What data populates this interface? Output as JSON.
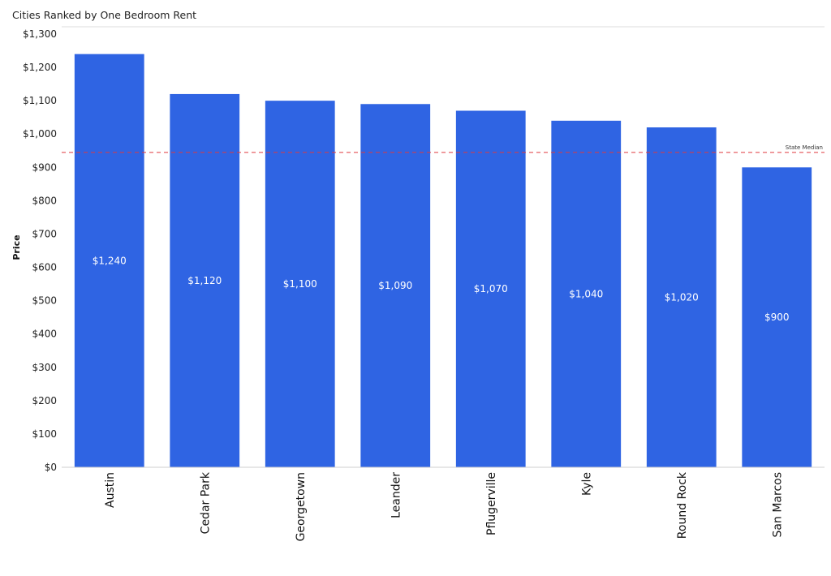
{
  "chart_data": {
    "type": "bar",
    "title": "Cities Ranked by One Bedroom Rent",
    "ylabel": "Price",
    "xlabel": "",
    "ylim": [
      0,
      1300
    ],
    "yticks": [
      0,
      100,
      200,
      300,
      400,
      500,
      600,
      700,
      800,
      900,
      1000,
      1100,
      1200,
      1300
    ],
    "ytick_labels": [
      "$0",
      "$100",
      "$200",
      "$300",
      "$400",
      "$500",
      "$600",
      "$700",
      "$800",
      "$900",
      "$1,000",
      "$1,100",
      "$1,200",
      "$1,300"
    ],
    "categories": [
      "Austin",
      "Cedar Park",
      "Georgetown",
      "Leander",
      "Pflugerville",
      "Kyle",
      "Round Rock",
      "San Marcos"
    ],
    "values": [
      1240,
      1120,
      1100,
      1090,
      1070,
      1040,
      1020,
      900
    ],
    "data_labels": [
      "$1,240",
      "$1,120",
      "$1,100",
      "$1,090",
      "$1,070",
      "$1,040",
      "$1,020",
      "$900"
    ],
    "reference_line": {
      "label": "State Median",
      "value": 945,
      "color": "#e0393e",
      "style": "dashed"
    },
    "bar_color": "#2f64e3",
    "grid": false,
    "legend": "none"
  }
}
